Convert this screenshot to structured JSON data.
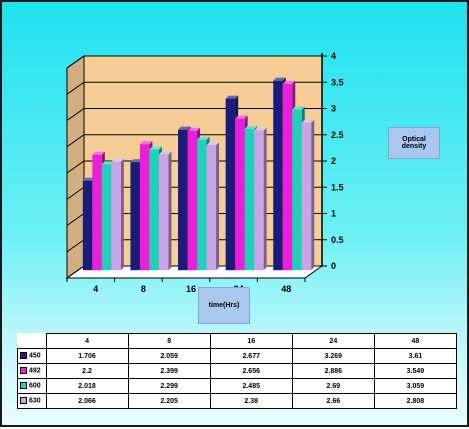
{
  "chart_data": {
    "type": "bar",
    "categories": [
      "4",
      "8",
      "16",
      "24",
      "48"
    ],
    "x_tick_labels": [
      "4",
      "8",
      "16",
      "24",
      "48"
    ],
    "series": [
      {
        "name": "450",
        "color": "#1b1b7a",
        "values": [
          1.706,
          2.059,
          2.677,
          3.269,
          3.61
        ]
      },
      {
        "name": "492",
        "color": "#ea1fd6",
        "values": [
          2.2,
          2.399,
          2.656,
          2.886,
          3.549
        ]
      },
      {
        "name": "600",
        "color": "#21d0b8",
        "values": [
          2.018,
          2.299,
          2.485,
          2.69,
          3.059
        ]
      },
      {
        "name": "630",
        "color": "#c9a4e6",
        "values": [
          2.066,
          2.205,
          2.38,
          2.66,
          2.808
        ]
      }
    ],
    "ylabel": "Optical density",
    "xlabel": "time(Hrs)",
    "ylim": [
      0,
      4
    ],
    "y_tick_labels": [
      "0",
      "0.5",
      "1",
      "1.5",
      "2",
      "2.5",
      "3",
      "3.5",
      "4"
    ],
    "grid": true,
    "legend": "data-table-left"
  },
  "table": {
    "headers": [
      "4",
      "8",
      "16",
      "24",
      "48"
    ],
    "rows": [
      {
        "name": "450",
        "cells": [
          "1.706",
          "2.059",
          "2.677",
          "3.269",
          "3.61"
        ]
      },
      {
        "name": "492",
        "cells": [
          "2.2",
          "2.399",
          "2.656",
          "2.886",
          "3.549"
        ]
      },
      {
        "name": "600",
        "cells": [
          "2.018",
          "2.299",
          "2.485",
          "2.69",
          "3.059"
        ]
      },
      {
        "name": "630",
        "cells": [
          "2.066",
          "2.205",
          "2.38",
          "2.66",
          "2.808"
        ]
      }
    ]
  },
  "colors": {
    "wall": "#f7cd97",
    "floor": "#ffffff",
    "background": "#36e6f0"
  }
}
